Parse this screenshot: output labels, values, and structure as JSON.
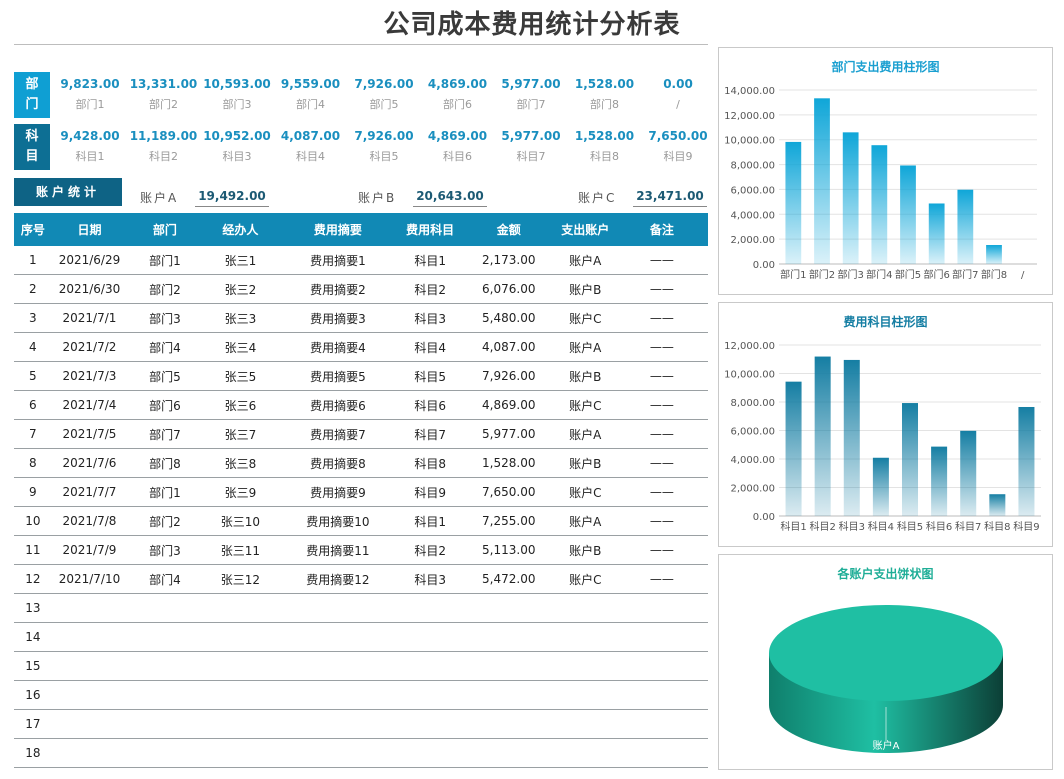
{
  "title": "公司成本费用统计分析表",
  "dept_summary": {
    "head": [
      "部",
      "门"
    ],
    "items": [
      {
        "value": "9,823.00",
        "label": "部门1"
      },
      {
        "value": "13,331.00",
        "label": "部门2"
      },
      {
        "value": "10,593.00",
        "label": "部门3"
      },
      {
        "value": "9,559.00",
        "label": "部门4"
      },
      {
        "value": "7,926.00",
        "label": "部门5"
      },
      {
        "value": "4,869.00",
        "label": "部门6"
      },
      {
        "value": "5,977.00",
        "label": "部门7"
      },
      {
        "value": "1,528.00",
        "label": "部门8"
      },
      {
        "value": "0.00",
        "label": "/"
      }
    ]
  },
  "subject_summary": {
    "head": [
      "科",
      "目"
    ],
    "items": [
      {
        "value": "9,428.00",
        "label": "科目1"
      },
      {
        "value": "11,189.00",
        "label": "科目2"
      },
      {
        "value": "10,952.00",
        "label": "科目3"
      },
      {
        "value": "4,087.00",
        "label": "科目4"
      },
      {
        "value": "7,926.00",
        "label": "科目5"
      },
      {
        "value": "4,869.00",
        "label": "科目6"
      },
      {
        "value": "5,977.00",
        "label": "科目7"
      },
      {
        "value": "1,528.00",
        "label": "科目8"
      },
      {
        "value": "7,650.00",
        "label": "科目9"
      }
    ]
  },
  "account_stats": {
    "button": "账户统计",
    "a_label": "账户A",
    "a_value": "19,492.00",
    "b_label": "账户B",
    "b_value": "20,643.00",
    "c_label": "账户C",
    "c_value": "23,471.00"
  },
  "table": {
    "headers": [
      "序号",
      "日期",
      "部门",
      "经办人",
      "费用摘要",
      "费用科目",
      "金额",
      "支出账户",
      "备注"
    ],
    "rows": [
      [
        "1",
        "2021/6/29",
        "部门1",
        "张三1",
        "费用摘要1",
        "科目1",
        "2,173.00",
        "账户A",
        "——"
      ],
      [
        "2",
        "2021/6/30",
        "部门2",
        "张三2",
        "费用摘要2",
        "科目2",
        "6,076.00",
        "账户B",
        "——"
      ],
      [
        "3",
        "2021/7/1",
        "部门3",
        "张三3",
        "费用摘要3",
        "科目3",
        "5,480.00",
        "账户C",
        "——"
      ],
      [
        "4",
        "2021/7/2",
        "部门4",
        "张三4",
        "费用摘要4",
        "科目4",
        "4,087.00",
        "账户A",
        "——"
      ],
      [
        "5",
        "2021/7/3",
        "部门5",
        "张三5",
        "费用摘要5",
        "科目5",
        "7,926.00",
        "账户B",
        "——"
      ],
      [
        "6",
        "2021/7/4",
        "部门6",
        "张三6",
        "费用摘要6",
        "科目6",
        "4,869.00",
        "账户C",
        "——"
      ],
      [
        "7",
        "2021/7/5",
        "部门7",
        "张三7",
        "费用摘要7",
        "科目7",
        "5,977.00",
        "账户A",
        "——"
      ],
      [
        "8",
        "2021/7/6",
        "部门8",
        "张三8",
        "费用摘要8",
        "科目8",
        "1,528.00",
        "账户B",
        "——"
      ],
      [
        "9",
        "2021/7/7",
        "部门1",
        "张三9",
        "费用摘要9",
        "科目9",
        "7,650.00",
        "账户C",
        "——"
      ],
      [
        "10",
        "2021/7/8",
        "部门2",
        "张三10",
        "费用摘要10",
        "科目1",
        "7,255.00",
        "账户A",
        "——"
      ],
      [
        "11",
        "2021/7/9",
        "部门3",
        "张三11",
        "费用摘要11",
        "科目2",
        "5,113.00",
        "账户B",
        "——"
      ],
      [
        "12",
        "2021/7/10",
        "部门4",
        "张三12",
        "费用摘要12",
        "科目3",
        "5,472.00",
        "账户C",
        "——"
      ],
      [
        "13",
        "",
        "",
        "",
        "",
        "",
        "",
        "",
        ""
      ],
      [
        "14",
        "",
        "",
        "",
        "",
        "",
        "",
        "",
        ""
      ],
      [
        "15",
        "",
        "",
        "",
        "",
        "",
        "",
        "",
        ""
      ],
      [
        "16",
        "",
        "",
        "",
        "",
        "",
        "",
        "",
        ""
      ],
      [
        "17",
        "",
        "",
        "",
        "",
        "",
        "",
        "",
        ""
      ],
      [
        "18",
        "",
        "",
        "",
        "",
        "",
        "",
        "",
        ""
      ]
    ]
  },
  "chart_data": [
    {
      "type": "bar",
      "title": "部门支出费用柱形图",
      "categories": [
        "部门1",
        "部门2",
        "部门3",
        "部门4",
        "部门5",
        "部门6",
        "部门7",
        "部门8",
        "/"
      ],
      "values": [
        9823,
        13331,
        10593,
        9559,
        7926,
        4869,
        5977,
        1528,
        0
      ],
      "ylim": [
        0,
        14000
      ],
      "yticks": [
        "0.00",
        "2,000.00",
        "4,000.00",
        "6,000.00",
        "8,000.00",
        "10,000.00",
        "12,000.00",
        "14,000.00"
      ],
      "color": "#0fa6d8",
      "title_color": "#1a9fd0"
    },
    {
      "type": "bar",
      "title": "费用科目柱形图",
      "categories": [
        "科目1",
        "科目2",
        "科目3",
        "科目4",
        "科目5",
        "科目6",
        "科目7",
        "科目8",
        "科目9"
      ],
      "values": [
        9428,
        11189,
        10952,
        4087,
        7926,
        4869,
        5977,
        1528,
        7650
      ],
      "ylim": [
        0,
        12000
      ],
      "yticks": [
        "0.00",
        "2,000.00",
        "4,000.00",
        "6,000.00",
        "8,000.00",
        "10,000.00",
        "12,000.00"
      ],
      "color": "#157ea3",
      "title_color": "#157ea3"
    },
    {
      "type": "pie",
      "title": "各账户支出饼状图",
      "slices": [
        {
          "label": "账户A",
          "value": 19492
        }
      ],
      "color": "#1fbfa3",
      "title_color": "#1fae97"
    }
  ]
}
